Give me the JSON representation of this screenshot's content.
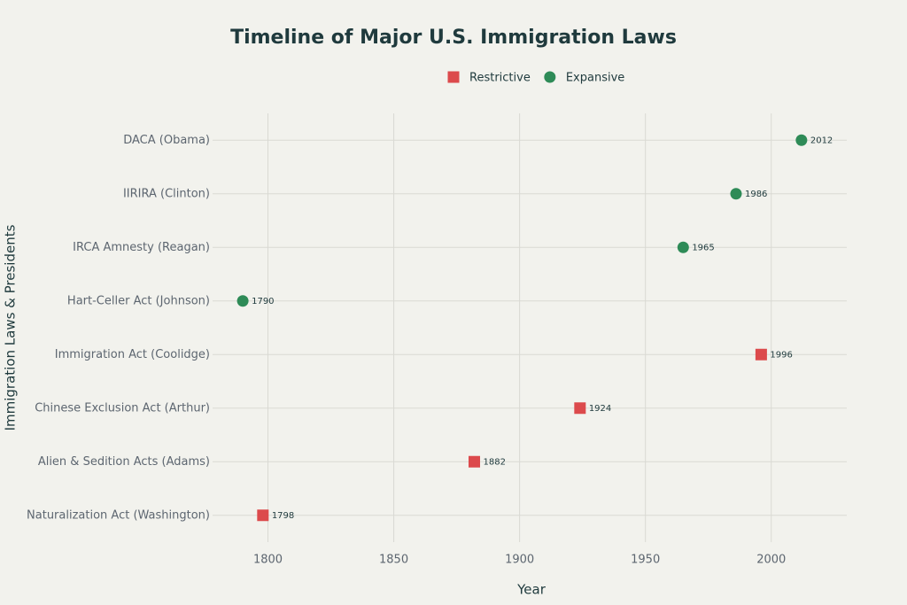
{
  "chart_data": {
    "type": "scatter",
    "title": "Timeline of Major U.S. Immigration Laws",
    "xlabel": "Year",
    "ylabel": "Immigration Laws & Presidents",
    "categories": [
      "Naturalization Act (Washington)",
      "Alien & Sedition Acts (Adams)",
      "Chinese Exclusion Act (Arthur)",
      "Immigration Act (Coolidge)",
      "Hart-Celler Act (Johnson)",
      "IRCA Amnesty (Reagan)",
      "IIRIRA (Clinton)",
      "DACA (Obama)"
    ],
    "series": [
      {
        "name": "Restrictive",
        "color": "#dc4a4c",
        "marker": "square",
        "values": [
          1798,
          1882,
          1924,
          1996,
          null,
          null,
          null,
          null
        ]
      },
      {
        "name": "Expansive",
        "color": "#2e8b57",
        "marker": "circle",
        "values": [
          null,
          null,
          null,
          null,
          1790,
          1965,
          1986,
          2012
        ]
      }
    ],
    "xlim": [
      1778,
      2030
    ],
    "xticks": [
      1800,
      1850,
      1900,
      1950,
      2000
    ],
    "grid": true,
    "legend": "top"
  }
}
